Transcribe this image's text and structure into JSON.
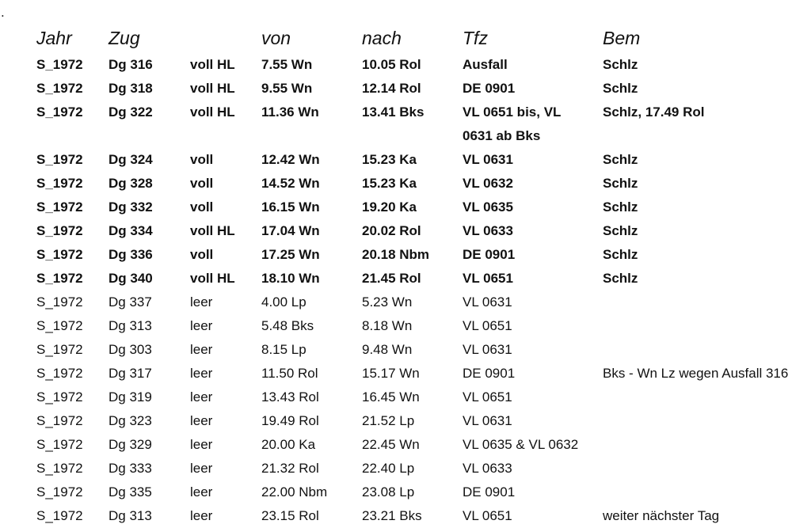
{
  "dot": ".",
  "table": {
    "header": [
      "Jahr",
      "Zug",
      null,
      "von",
      "nach",
      "Tfz",
      "Bem"
    ],
    "rows": [
      [
        "S_1972",
        "Dg 316",
        "voll HL",
        "7.55 Wn",
        "10.05 Rol",
        "Ausfall",
        "Schlz"
      ],
      [
        "S_1972",
        "Dg 318",
        "voll HL",
        "9.55 Wn",
        "12.14 Rol",
        "DE 0901",
        "Schlz"
      ],
      [
        "S_1972",
        "Dg 322",
        "voll HL",
        "11.36 Wn",
        "13.41 Bks",
        "VL 0651 bis, VL 0631 ab Bks",
        "Schlz, 17.49 Rol"
      ],
      [
        "S_1972",
        "Dg 324",
        "voll",
        "12.42 Wn",
        "15.23 Ka",
        "VL 0631",
        "Schlz"
      ],
      [
        "S_1972",
        "Dg 328",
        "voll",
        "14.52 Wn",
        "15.23 Ka",
        "VL 0632",
        "Schlz"
      ],
      [
        "S_1972",
        "Dg 332",
        "voll",
        "16.15 Wn",
        "19.20 Ka",
        "VL 0635",
        "Schlz"
      ],
      [
        "S_1972",
        "Dg 334",
        "voll HL",
        "17.04 Wn",
        "20.02 Rol",
        "VL 0633",
        "Schlz"
      ],
      [
        "S_1972",
        "Dg 336",
        "voll",
        "17.25 Wn",
        "20.18 Nbm",
        "DE 0901",
        "Schlz"
      ],
      [
        "S_1972",
        "Dg 340",
        "voll HL",
        "18.10 Wn",
        "21.45 Rol",
        "VL 0651",
        "Schlz"
      ],
      [
        "S_1972",
        "Dg 337",
        "leer",
        "4.00 Lp",
        "5.23 Wn",
        "VL 0631",
        null
      ],
      [
        "S_1972",
        "Dg 313",
        "leer",
        "5.48 Bks",
        "8.18 Wn",
        "VL 0651",
        null
      ],
      [
        "S_1972",
        "Dg 303",
        "leer",
        "8.15 Lp",
        "9.48 Wn",
        "VL 0631",
        null
      ],
      [
        "S_1972",
        "Dg 317",
        "leer",
        "11.50 Rol",
        "15.17 Wn",
        "DE 0901",
        "Bks - Wn Lz wegen Ausfall 316"
      ],
      [
        "S_1972",
        "Dg 319",
        "leer",
        "13.43 Rol",
        "16.45 Wn",
        "VL 0651",
        null
      ],
      [
        "S_1972",
        "Dg 323",
        "leer",
        "19.49 Rol",
        "21.52 Lp",
        "VL 0631",
        null
      ],
      [
        "S_1972",
        "Dg 329",
        "leer",
        "20.00 Ka",
        "22.45 Wn",
        "VL 0635 & VL 0632",
        null
      ],
      [
        "S_1972",
        "Dg 333",
        "leer",
        "21.32 Rol",
        "22.40 Lp",
        "VL 0633",
        null
      ],
      [
        "S_1972",
        "Dg 335",
        "leer",
        "22.00 Nbm",
        "23.08 Lp",
        "DE 0901",
        null
      ],
      [
        "S_1972",
        "Dg 313",
        "leer",
        "23.15 Rol",
        "23.21 Bks",
        "VL 0651",
        "weiter nächster Tag"
      ]
    ]
  }
}
